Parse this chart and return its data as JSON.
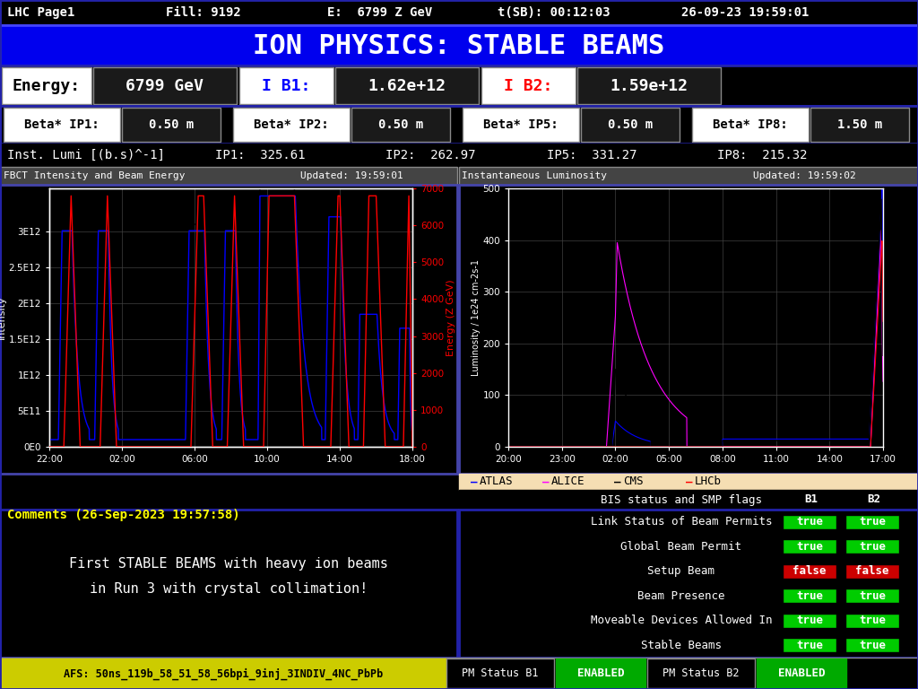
{
  "header_items": [
    "LHC Page1",
    "Fill: 9192",
    "E:  6799 Z GeV",
    "t(SB): 00:12:03",
    "26-09-23 19:59:01"
  ],
  "title": "ION PHYSICS: STABLE BEAMS",
  "energy_value": "6799 GeV",
  "ib1_value": "1.62e+12",
  "ib2_value": "1.59e+12",
  "beta_ip1": "0.50 m",
  "beta_ip2": "0.50 m",
  "beta_ip5": "0.50 m",
  "beta_ip8": "1.50 m",
  "lumi_ip1": "IP1:  325.61",
  "lumi_ip2": "IP2:  262.97",
  "lumi_ip5": "IP5:  331.27",
  "lumi_ip8": "IP8:  215.32",
  "fbct_title": "FBCT Intensity and Beam Energy",
  "fbct_updated": "Updated: 19:59:01",
  "lumi_plot_title": "Instantaneous Luminosity",
  "lumi_updated": "Updated: 19:59:02",
  "comment_title": "Comments (26-Sep-2023 19:57:58)",
  "comment_line1": "First STABLE BEAMS with heavy ion beams",
  "comment_line2": "in Run 3 with crystal collimation!",
  "bis_title": "BIS status and SMP flags",
  "bis_rows": [
    [
      "Link Status of Beam Permits",
      "true",
      "true",
      "#00CC00",
      "#00CC00"
    ],
    [
      "Global Beam Permit",
      "true",
      "true",
      "#00CC00",
      "#00CC00"
    ],
    [
      "Setup Beam",
      "false",
      "false",
      "#CC0000",
      "#CC0000"
    ],
    [
      "Beam Presence",
      "true",
      "true",
      "#00CC00",
      "#00CC00"
    ],
    [
      "Moveable Devices Allowed In",
      "true",
      "true",
      "#00CC00",
      "#00CC00"
    ],
    [
      "Stable Beams",
      "true",
      "true",
      "#00CC00",
      "#00CC00"
    ]
  ],
  "footer_left": "AFS: 50ns_119b_58_51_58_56bpi_9inj_3INDIV_4NC_PbPb",
  "footer_pm_b1": "PM Status B1",
  "footer_pm_b1_val": "ENABLED",
  "footer_pm_b2": "PM Status B2",
  "footer_pm_b2_val": "ENABLED",
  "atlas_color": "#0000FF",
  "alice_color": "#FF00FF",
  "cms_color": "#000000",
  "lhcb_color": "#FF0000"
}
